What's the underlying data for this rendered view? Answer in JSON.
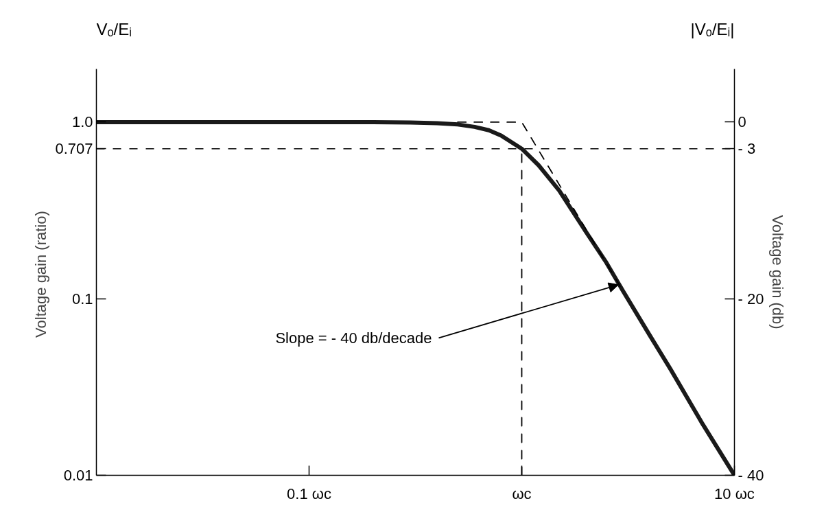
{
  "chart_data": {
    "type": "line",
    "ylabel": "Voltage gain  (ratio)",
    "y2label": "Voltage gain (db)",
    "log": "xy",
    "grid": false,
    "xlim": [
      0.01,
      10
    ],
    "xticks": [
      {
        "value": 0.1,
        "label": "0.1 ωc"
      },
      {
        "value": 1,
        "label": "ωc"
      },
      {
        "value": 10,
        "label": "10 ωc"
      }
    ],
    "ylim": [
      0.01,
      2
    ],
    "yticks": [
      0.01,
      0.1,
      0.707,
      {
        "value": 1,
        "label": "1.0"
      }
    ],
    "y2lim": [
      -40,
      6
    ],
    "y2ticks": [
      0,
      {
        "value": -3,
        "label": "- 3"
      },
      {
        "value": -20,
        "label": "- 20"
      },
      {
        "value": -40,
        "label": "- 40"
      }
    ],
    "series": [
      {
        "color": "#1a1a1a",
        "x": [
          0.01,
          0.05,
          0.1,
          0.2,
          0.3,
          0.4,
          0.5,
          0.6,
          0.7,
          0.8,
          1,
          1.2,
          1.5,
          2,
          2.5,
          3,
          4,
          5,
          7,
          10
        ],
        "values": [
          1,
          1,
          1,
          0.999,
          0.996,
          0.987,
          0.97,
          0.94,
          0.9,
          0.84,
          0.707,
          0.57,
          0.41,
          0.24,
          0.16,
          0.11,
          0.062,
          0.04,
          0.02,
          0.01
        ]
      },
      {
        "color": "#000000",
        "line_style": "dashed",
        "x": [
          0.5,
          1,
          3
        ],
        "values": [
          1,
          1,
          0.11
        ]
      },
      {
        "color": "#000000",
        "line_style": "dashed",
        "x": [
          1,
          1
        ],
        "values": [
          0.01,
          0.707
        ]
      }
    ],
    "ref_lines": [
      {
        "axis": "y",
        "value": 0.707,
        "color": "#000000",
        "line_style": "dashed"
      }
    ],
    "annotations": [
      "Vₒ/Eᵢ",
      "|Vₒ/Eᵢ|",
      {
        "text": "Slope = - 40 db/decade",
        "x": 2.85,
        "y": 0.12
      }
    ]
  }
}
